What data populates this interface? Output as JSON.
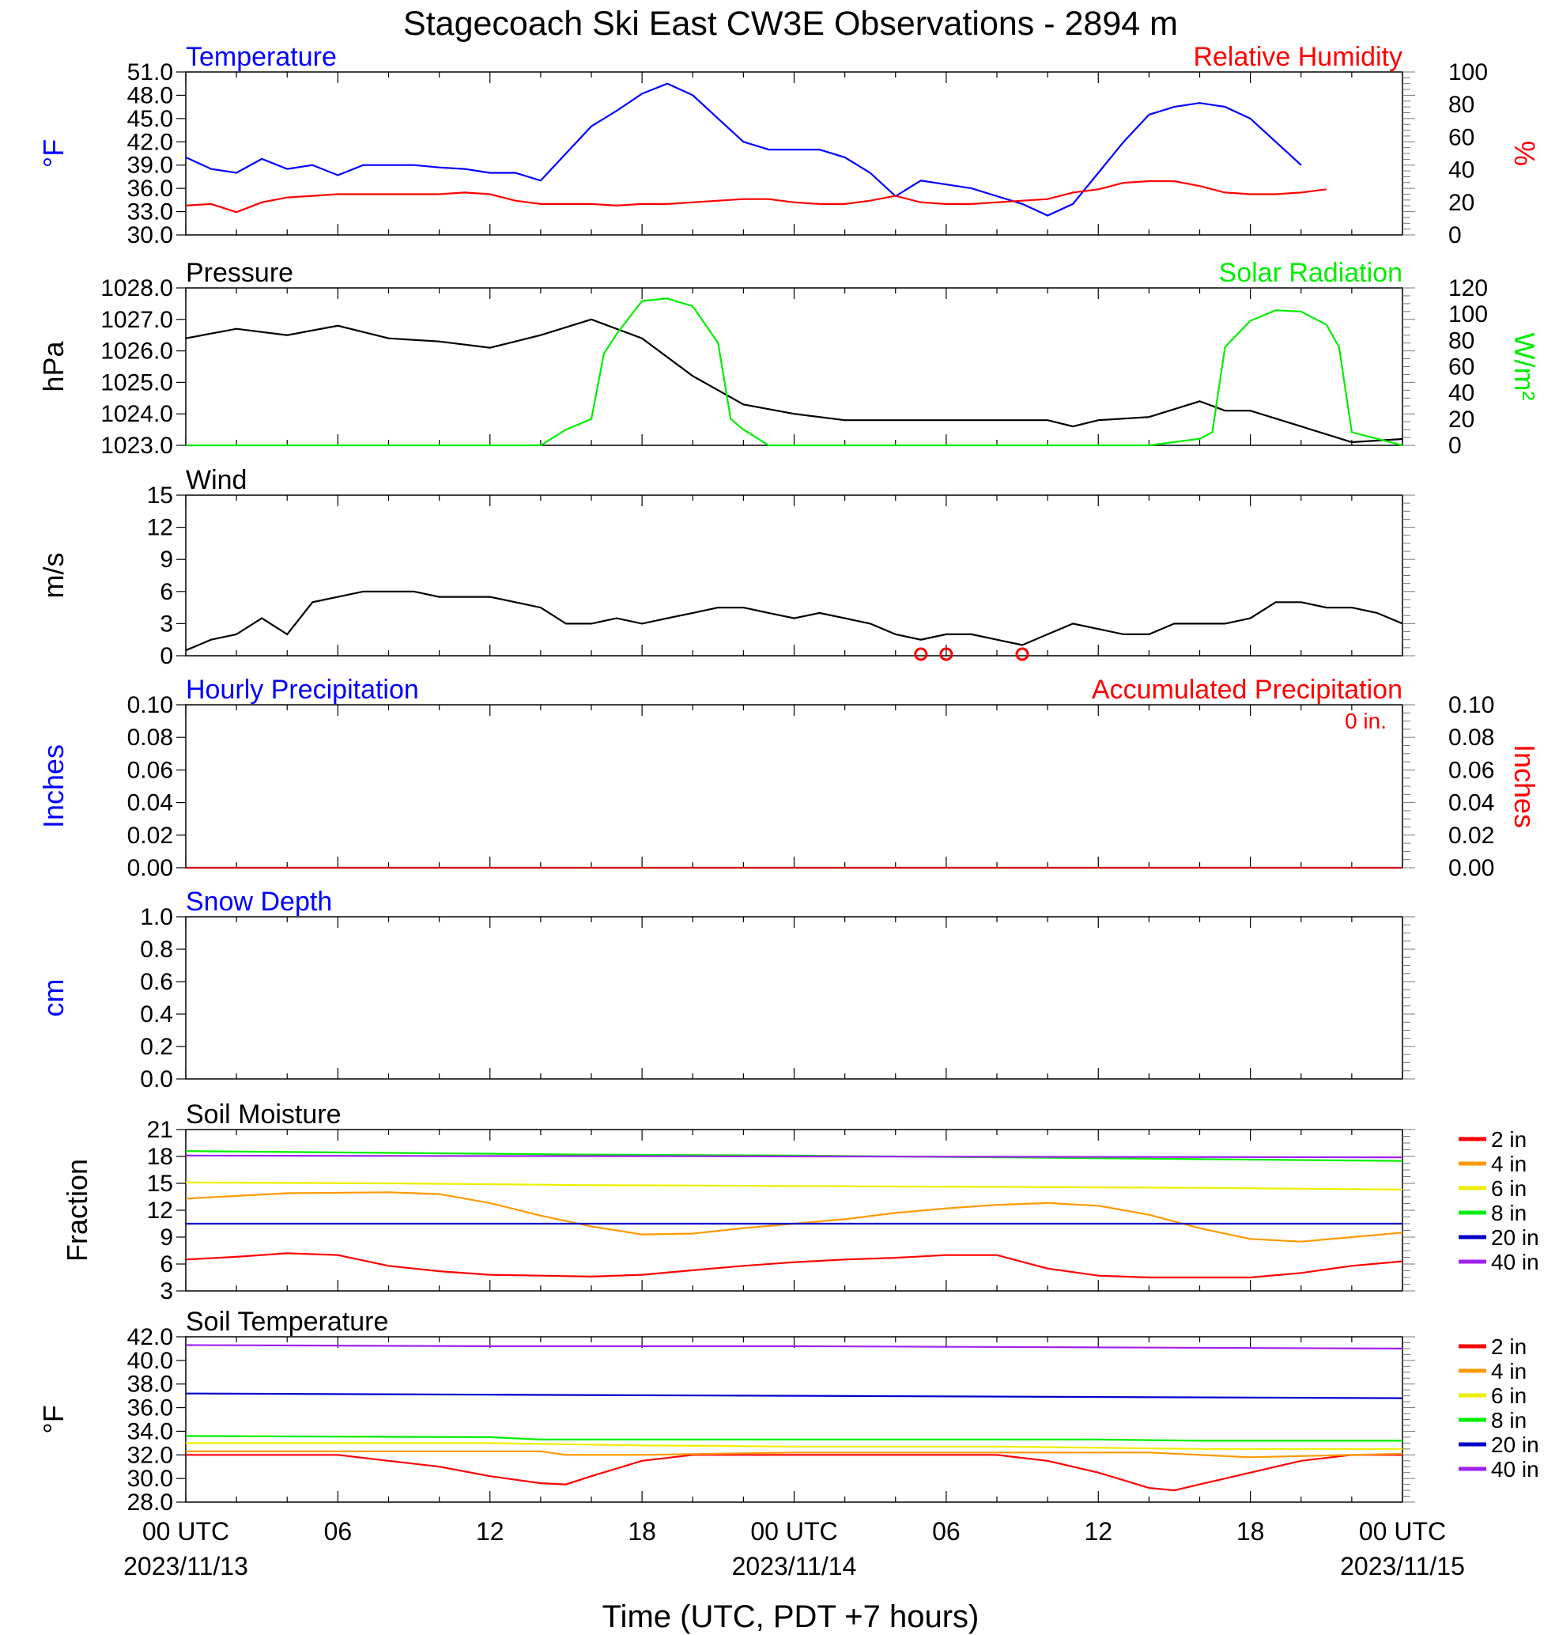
{
  "title": "Stagecoach Ski East CW3E Observations - 2894 m",
  "xlabel": "Time (UTC, PDT +7 hours)",
  "x_ticks": [
    {
      "hour": 0,
      "label": "00 UTC",
      "date": "2023/11/13"
    },
    {
      "hour": 6,
      "label": "06"
    },
    {
      "hour": 12,
      "label": "12"
    },
    {
      "hour": 18,
      "label": "18"
    },
    {
      "hour": 24,
      "label": "00 UTC",
      "date": "2023/11/14"
    },
    {
      "hour": 30,
      "label": "06"
    },
    {
      "hour": 36,
      "label": "12"
    },
    {
      "hour": 42,
      "label": "18"
    },
    {
      "hour": 48,
      "label": "00 UTC",
      "date": "2023/11/15"
    }
  ],
  "colors": {
    "blue": "#0000ff",
    "red": "#ff0000",
    "green": "#00ee00",
    "black": "#000000",
    "orange": "#ff9900",
    "yellow": "#eeee00",
    "navy": "#0000cc",
    "purple": "#a020f0"
  },
  "chart_data": [
    {
      "id": "temperature-rh",
      "type": "line",
      "left_title": "Temperature",
      "right_title": "Relative Humidity",
      "ylabel_left": "°F",
      "ylabel_right": "%",
      "y_left": {
        "lim": [
          30,
          51
        ],
        "ticks": [
          "30.0",
          "33.0",
          "36.0",
          "39.0",
          "42.0",
          "45.0",
          "48.0",
          "51.0"
        ]
      },
      "y_right": {
        "lim": [
          0,
          100
        ],
        "ticks": [
          "0",
          "20",
          "40",
          "60",
          "80",
          "100"
        ]
      },
      "series": [
        {
          "name": "Temperature",
          "color": "#0000ff",
          "axis": "left",
          "x": [
            0,
            1,
            2,
            3,
            4,
            5,
            6,
            7,
            8,
            9,
            10,
            11,
            12,
            13,
            14,
            15,
            16,
            17,
            18,
            19,
            20,
            21,
            22,
            23,
            24,
            25,
            26,
            27,
            28,
            29,
            30,
            31,
            32,
            33,
            34,
            35,
            36,
            37,
            38,
            39,
            40,
            41,
            42,
            43,
            44,
            45,
            46,
            47,
            48
          ],
          "y": [
            40,
            38.5,
            38,
            39.8,
            38.5,
            39,
            37.7,
            39,
            39,
            39,
            38.7,
            38.5,
            38,
            38,
            37,
            40.5,
            44,
            46,
            48.2,
            49.5,
            48,
            45,
            42,
            41,
            41,
            41,
            40,
            38,
            35,
            37,
            36.5,
            36,
            35,
            34,
            32.5,
            34,
            38,
            42,
            45.5,
            46.5,
            47,
            46.5,
            45,
            42,
            39,
            null,
            null,
            null,
            null
          ]
        },
        {
          "name": "Relative Humidity",
          "color": "#ff0000",
          "axis": "right",
          "x": [
            0,
            1,
            2,
            3,
            4,
            5,
            6,
            7,
            8,
            9,
            10,
            11,
            12,
            13,
            14,
            15,
            16,
            17,
            18,
            19,
            20,
            21,
            22,
            23,
            24,
            25,
            26,
            27,
            28,
            29,
            30,
            31,
            32,
            33,
            34,
            35,
            36,
            37,
            38,
            39,
            40,
            41,
            42,
            43,
            44,
            45,
            46,
            47,
            48
          ],
          "y": [
            18,
            19,
            14,
            20,
            23,
            24,
            25,
            25,
            25,
            25,
            25,
            26,
            25,
            21,
            19,
            19,
            19,
            18,
            19,
            19,
            20,
            21,
            22,
            22,
            20,
            19,
            19,
            21,
            24,
            20,
            19,
            19,
            20,
            21,
            22,
            26,
            28,
            32,
            33,
            33,
            30,
            26,
            25,
            25,
            26,
            28,
            null,
            null,
            null
          ]
        }
      ]
    },
    {
      "id": "pressure-solar",
      "type": "line",
      "left_title": "Pressure",
      "right_title": "Solar Radiation",
      "ylabel_left": "hPa",
      "ylabel_right": "W/m²",
      "y_left": {
        "lim": [
          1023,
          1028
        ],
        "ticks": [
          "1023.0",
          "1024.0",
          "1025.0",
          "1026.0",
          "1027.0",
          "1028.0"
        ]
      },
      "y_right": {
        "lim": [
          0,
          120
        ],
        "ticks": [
          "0",
          "20",
          "40",
          "60",
          "80",
          "100",
          "120"
        ]
      },
      "series": [
        {
          "name": "Pressure",
          "color": "#000000",
          "axis": "left",
          "x": [
            0,
            2,
            4,
            6,
            8,
            10,
            12,
            14,
            16,
            18,
            20,
            22,
            24,
            26,
            28,
            30,
            32,
            34,
            35,
            36,
            38,
            40,
            41,
            42,
            44,
            46,
            48
          ],
          "y": [
            1026.4,
            1026.7,
            1026.5,
            1026.8,
            1026.4,
            1026.3,
            1026.1,
            1026.5,
            1027.0,
            1026.4,
            1025.2,
            1024.3,
            1024.0,
            1023.8,
            1023.8,
            1023.8,
            1023.8,
            1023.8,
            1023.6,
            1023.8,
            1023.9,
            1024.4,
            1024.1,
            1024.1,
            1023.6,
            1023.1,
            1023.2
          ]
        },
        {
          "name": "Solar Radiation",
          "color": "#00ee00",
          "axis": "right",
          "x": [
            0,
            14,
            15,
            16,
            16.5,
            17,
            18,
            19,
            20,
            21,
            21.5,
            22,
            23,
            24,
            36,
            38,
            40,
            40.5,
            41,
            42,
            43,
            44,
            45,
            45.5,
            46,
            47,
            48
          ],
          "y": [
            0,
            0,
            12,
            20,
            70,
            85,
            110,
            112,
            106,
            78,
            20,
            12,
            0,
            0,
            0,
            0,
            5,
            10,
            75,
            95,
            103,
            102,
            92,
            75,
            10,
            5,
            0
          ]
        }
      ]
    },
    {
      "id": "wind",
      "type": "line",
      "left_title": "Wind",
      "ylabel_left": "m/s",
      "y_left": {
        "lim": [
          0,
          15
        ],
        "ticks": [
          "0",
          "3",
          "6",
          "9",
          "12",
          "15"
        ]
      },
      "series": [
        {
          "name": "Wind",
          "color": "#000000",
          "axis": "left",
          "x": [
            0,
            1,
            2,
            3,
            4,
            5,
            6,
            7,
            8,
            9,
            10,
            11,
            12,
            13,
            14,
            15,
            16,
            17,
            18,
            19,
            20,
            21,
            22,
            23,
            24,
            25,
            26,
            27,
            28,
            29,
            30,
            31,
            32,
            33,
            34,
            35,
            36,
            37,
            38,
            39,
            40,
            41,
            42,
            43,
            44,
            45,
            46,
            47,
            48
          ],
          "y": [
            0.5,
            1.5,
            2,
            3.5,
            2,
            5,
            5.5,
            6,
            6,
            6,
            5.5,
            5.5,
            5.5,
            5,
            4.5,
            3,
            3,
            3.5,
            3,
            3.5,
            4,
            4.5,
            4.5,
            4,
            3.5,
            4,
            3.5,
            3,
            2,
            1.5,
            2,
            2,
            1.5,
            1,
            2,
            3,
            2.5,
            2,
            2,
            3,
            3,
            3,
            3.5,
            5,
            5,
            4.5,
            4.5,
            4,
            3
          ]
        }
      ],
      "calm_hours": [
        29,
        30,
        33
      ]
    },
    {
      "id": "precipitation",
      "type": "line",
      "left_title": "Hourly Precipitation",
      "right_title": "Accumulated Precipitation",
      "annotation": "0 in.",
      "ylabel_left": "Inches",
      "ylabel_right": "Inches",
      "y_left": {
        "lim": [
          0,
          0.1
        ],
        "ticks": [
          "0.00",
          "0.02",
          "0.04",
          "0.06",
          "0.08",
          "0.10"
        ]
      },
      "y_right": {
        "lim": [
          0,
          0.1
        ],
        "ticks": [
          "0.00",
          "0.02",
          "0.04",
          "0.06",
          "0.08",
          "0.10"
        ]
      },
      "series": [
        {
          "name": "Accumulated Precipitation",
          "color": "#cc0000",
          "axis": "left",
          "x": [
            0,
            48
          ],
          "y": [
            0,
            0
          ]
        }
      ]
    },
    {
      "id": "snow-depth",
      "type": "line",
      "left_title": "Snow Depth",
      "ylabel_left": "cm",
      "y_left": {
        "lim": [
          0,
          1
        ],
        "ticks": [
          "0.0",
          "0.2",
          "0.4",
          "0.6",
          "0.8",
          "1.0"
        ]
      },
      "series": []
    },
    {
      "id": "soil-moisture",
      "type": "line",
      "left_title": "Soil Moisture",
      "ylabel_left": "Fraction",
      "y_left": {
        "lim": [
          3,
          21
        ],
        "ticks": [
          "3",
          "6",
          "9",
          "12",
          "15",
          "18",
          "21"
        ]
      },
      "legend": [
        "2 in",
        "4 in",
        "6 in",
        "8 in",
        "20 in",
        "40 in"
      ],
      "series": [
        {
          "name": "2 in",
          "color": "#ff0000",
          "x": [
            0,
            2,
            4,
            6,
            8,
            10,
            12,
            14,
            16,
            18,
            20,
            22,
            24,
            26,
            28,
            30,
            32,
            34,
            36,
            38,
            40,
            42,
            44,
            46,
            48
          ],
          "y": [
            6.5,
            6.8,
            7.2,
            7,
            5.8,
            5.2,
            4.8,
            4.7,
            4.6,
            4.8,
            5.3,
            5.8,
            6.2,
            6.5,
            6.7,
            7,
            7,
            5.5,
            4.7,
            4.5,
            4.5,
            4.5,
            5,
            5.8,
            6.3
          ]
        },
        {
          "name": "4 in",
          "color": "#ff9900",
          "x": [
            0,
            4,
            8,
            10,
            12,
            14,
            16,
            18,
            20,
            22,
            24,
            26,
            28,
            30,
            32,
            34,
            36,
            38,
            40,
            42,
            44,
            46,
            48
          ],
          "y": [
            13.3,
            13.9,
            14,
            13.8,
            12.8,
            11.4,
            10.2,
            9.3,
            9.4,
            10,
            10.5,
            11,
            11.7,
            12.2,
            12.6,
            12.8,
            12.5,
            11.5,
            10,
            8.8,
            8.5,
            9,
            9.5
          ]
        },
        {
          "name": "6 in",
          "color": "#eeee00",
          "x": [
            0,
            8,
            16,
            24,
            32,
            40,
            48
          ],
          "y": [
            15.1,
            15,
            14.8,
            14.7,
            14.6,
            14.5,
            14.3
          ]
        },
        {
          "name": "8 in",
          "color": "#00ee00",
          "x": [
            0,
            8,
            16,
            24,
            32,
            40,
            48
          ],
          "y": [
            18.6,
            18.4,
            18.2,
            18.1,
            17.9,
            17.7,
            17.5
          ]
        },
        {
          "name": "20 in",
          "color": "#0000cc",
          "x": [
            0,
            48
          ],
          "y": [
            10.5,
            10.5
          ]
        },
        {
          "name": "40 in",
          "color": "#a020f0",
          "x": [
            0,
            24,
            48
          ],
          "y": [
            18.1,
            18.0,
            17.9
          ]
        }
      ]
    },
    {
      "id": "soil-temperature",
      "type": "line",
      "left_title": "Soil Temperature",
      "ylabel_left": "°F",
      "y_left": {
        "lim": [
          28,
          42
        ],
        "ticks": [
          "28.0",
          "30.0",
          "32.0",
          "34.0",
          "36.0",
          "38.0",
          "40.0",
          "42.0"
        ]
      },
      "legend": [
        "2 in",
        "4 in",
        "6 in",
        "8 in",
        "20 in",
        "40 in"
      ],
      "series": [
        {
          "name": "2 in",
          "color": "#ff0000",
          "x": [
            0,
            4,
            6,
            8,
            10,
            12,
            14,
            15,
            16,
            18,
            20,
            24,
            28,
            32,
            34,
            36,
            38,
            39,
            40,
            42,
            44,
            46,
            48
          ],
          "y": [
            32,
            32,
            32,
            31.5,
            31,
            30.2,
            29.6,
            29.5,
            30.2,
            31.5,
            32,
            32,
            32,
            32,
            31.5,
            30.5,
            29.2,
            29,
            29.5,
            30.5,
            31.5,
            32,
            32
          ]
        },
        {
          "name": "4 in",
          "color": "#ff9900",
          "x": [
            0,
            14,
            15,
            18,
            24,
            32,
            38,
            40,
            42,
            48
          ],
          "y": [
            32.3,
            32.3,
            32,
            32,
            32.2,
            32.2,
            32.2,
            32,
            31.8,
            32.1
          ]
        },
        {
          "name": "6 in",
          "color": "#eeee00",
          "x": [
            0,
            12,
            18,
            24,
            32,
            40,
            48
          ],
          "y": [
            33,
            33,
            32.8,
            32.7,
            32.7,
            32.5,
            32.5
          ]
        },
        {
          "name": "8 in",
          "color": "#00ee00",
          "x": [
            0,
            12,
            14,
            24,
            36,
            40,
            48
          ],
          "y": [
            33.6,
            33.5,
            33.3,
            33.3,
            33.3,
            33.2,
            33.2
          ]
        },
        {
          "name": "20 in",
          "color": "#0000cc",
          "x": [
            0,
            12,
            24,
            36,
            48
          ],
          "y": [
            37.2,
            37.1,
            37,
            36.9,
            36.8
          ]
        },
        {
          "name": "40 in",
          "color": "#a020f0",
          "x": [
            0,
            12,
            24,
            36,
            48
          ],
          "y": [
            41.3,
            41.2,
            41.2,
            41.1,
            41.0
          ]
        }
      ]
    }
  ]
}
